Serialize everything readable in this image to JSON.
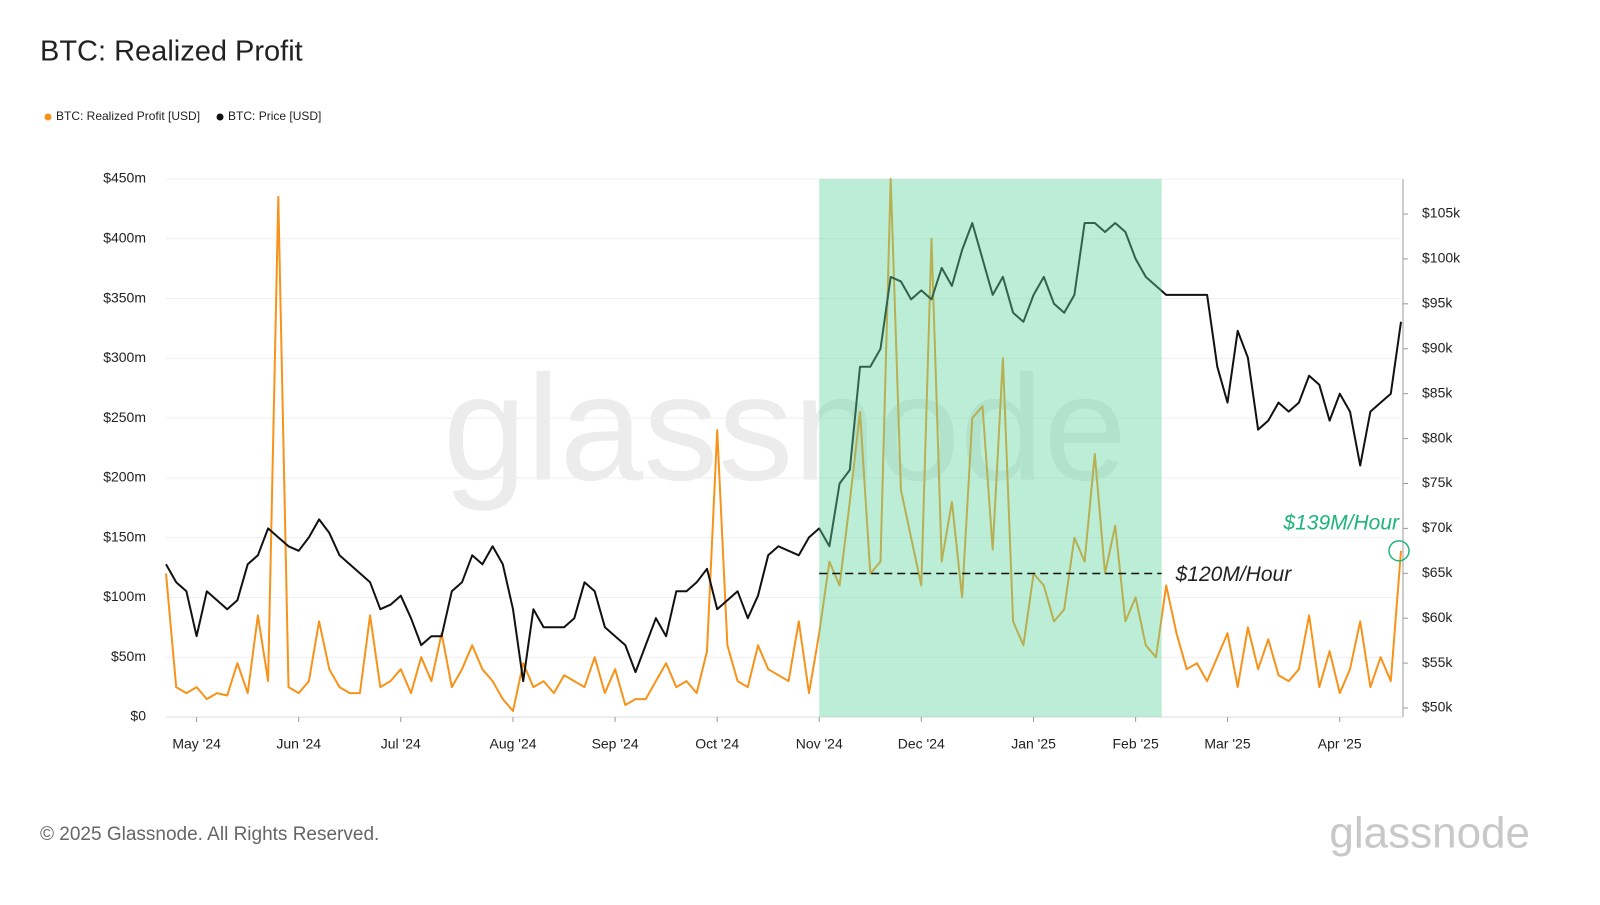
{
  "chart_data": {
    "type": "line",
    "title": "BTC: Realized Profit",
    "watermark": "glassnode",
    "footer": "© 2025 Glassnode. All Rights Reserved.",
    "logo": "glassnode",
    "legend_position": "top-left",
    "categories": [
      null,
      null,
      null,
      "May '24",
      null,
      null,
      null,
      null,
      null,
      null,
      null,
      null,
      null,
      "Jun '24",
      null,
      null,
      null,
      null,
      null,
      null,
      null,
      null,
      null,
      "Jul '24",
      null,
      null,
      null,
      null,
      null,
      null,
      null,
      null,
      null,
      null,
      "Aug '24",
      null,
      null,
      null,
      null,
      null,
      null,
      null,
      null,
      null,
      "Sep '24",
      null,
      null,
      null,
      null,
      null,
      null,
      null,
      null,
      null,
      "Oct '24",
      null,
      null,
      null,
      null,
      null,
      null,
      null,
      null,
      null,
      "Nov '24",
      null,
      null,
      null,
      null,
      null,
      null,
      null,
      null,
      null,
      "Dec '24",
      null,
      null,
      null,
      null,
      null,
      null,
      null,
      null,
      null,
      null,
      "Jan '25",
      null,
      null,
      null,
      null,
      null,
      null,
      null,
      null,
      null,
      "Feb '25",
      null,
      null,
      null,
      null,
      null,
      null,
      null,
      null,
      "Mar '25",
      null,
      null,
      null,
      null,
      null,
      null,
      null,
      null,
      null,
      null,
      "Apr '25",
      null,
      null,
      null,
      null,
      null,
      null
    ],
    "series": [
      {
        "name": "BTC: Realized Profit [USD]",
        "color": "#f7931a",
        "axis": "y",
        "values": [
          120,
          25,
          20,
          25,
          15,
          20,
          18,
          45,
          20,
          85,
          30,
          435,
          25,
          20,
          30,
          80,
          40,
          25,
          20,
          20,
          85,
          25,
          30,
          40,
          20,
          50,
          30,
          70,
          25,
          40,
          60,
          40,
          30,
          15,
          5,
          45,
          25,
          30,
          20,
          35,
          30,
          25,
          50,
          20,
          40,
          10,
          15,
          15,
          30,
          45,
          25,
          30,
          20,
          55,
          240,
          60,
          30,
          25,
          60,
          40,
          35,
          30,
          80,
          20,
          70,
          130,
          110,
          180,
          255,
          120,
          130,
          450,
          190,
          150,
          110,
          400,
          130,
          180,
          100,
          250,
          260,
          140,
          300,
          80,
          60,
          120,
          110,
          80,
          90,
          150,
          130,
          220,
          120,
          160,
          80,
          100,
          60,
          50,
          110,
          70,
          40,
          45,
          30,
          50,
          70,
          25,
          75,
          40,
          65,
          35,
          30,
          40,
          85,
          25,
          55,
          20,
          40,
          80,
          25,
          50,
          30,
          139
        ]
      },
      {
        "name": "BTC: Price [USD]",
        "color": "#111111",
        "axis": "y2",
        "values": [
          66,
          64,
          63,
          58,
          63,
          62,
          61,
          62,
          66,
          67,
          70,
          69,
          68,
          67.5,
          69,
          71,
          69.5,
          67,
          66,
          65,
          64,
          61,
          61.5,
          62.5,
          60,
          57,
          58,
          58,
          63,
          64,
          67,
          66,
          68,
          66,
          61,
          53,
          61,
          59,
          59,
          59,
          60,
          64,
          63,
          59,
          58,
          57,
          54,
          57,
          60,
          58,
          63,
          63,
          64,
          65.5,
          61,
          62,
          63,
          60,
          62.5,
          67,
          68,
          67.5,
          67,
          69,
          70,
          68,
          75,
          76.5,
          88,
          88,
          90,
          98,
          97.5,
          95.5,
          96.5,
          95.5,
          99,
          97,
          101,
          104,
          100,
          96,
          98,
          94,
          93,
          96,
          98,
          95,
          94,
          96,
          104,
          104,
          103,
          104,
          103,
          100,
          98,
          97,
          96,
          96,
          96,
          96,
          96,
          88,
          84,
          92,
          89,
          81,
          82,
          84,
          83,
          84,
          87,
          86,
          82,
          85,
          83,
          77,
          83,
          84,
          85,
          93
        ]
      }
    ],
    "ylim": [
      0,
      450
    ],
    "yticks": [
      {
        "value": 0,
        "label": "$0"
      },
      {
        "value": 50,
        "label": "$50m"
      },
      {
        "value": 100,
        "label": "$100m"
      },
      {
        "value": 150,
        "label": "$150m"
      },
      {
        "value": 200,
        "label": "$200m"
      },
      {
        "value": 250,
        "label": "$250m"
      },
      {
        "value": 300,
        "label": "$300m"
      },
      {
        "value": 350,
        "label": "$350m"
      },
      {
        "value": 400,
        "label": "$400m"
      },
      {
        "value": 450,
        "label": "$450m"
      }
    ],
    "y2lim": [
      49,
      108.9
    ],
    "y2ticks": [
      {
        "value": 50,
        "label": "$50k"
      },
      {
        "value": 55,
        "label": "$55k"
      },
      {
        "value": 60,
        "label": "$60k"
      },
      {
        "value": 65,
        "label": "$65k"
      },
      {
        "value": 70,
        "label": "$70k"
      },
      {
        "value": 75,
        "label": "$75k"
      },
      {
        "value": 80,
        "label": "$80k"
      },
      {
        "value": 85,
        "label": "$85k"
      },
      {
        "value": 90,
        "label": "$90k"
      },
      {
        "value": 95,
        "label": "$95k"
      },
      {
        "value": 100,
        "label": "$100k"
      },
      {
        "value": 105,
        "label": "$105k"
      }
    ],
    "grid": true,
    "highlight": {
      "from": "Nov '24",
      "to": "Feb '25",
      "color": "#5fd6a0"
    },
    "threshold": {
      "value": 120,
      "label": "$120M/Hour"
    },
    "peak_annotation": {
      "value": 139,
      "label": "$139M/Hour",
      "color": "#1db57a"
    }
  }
}
